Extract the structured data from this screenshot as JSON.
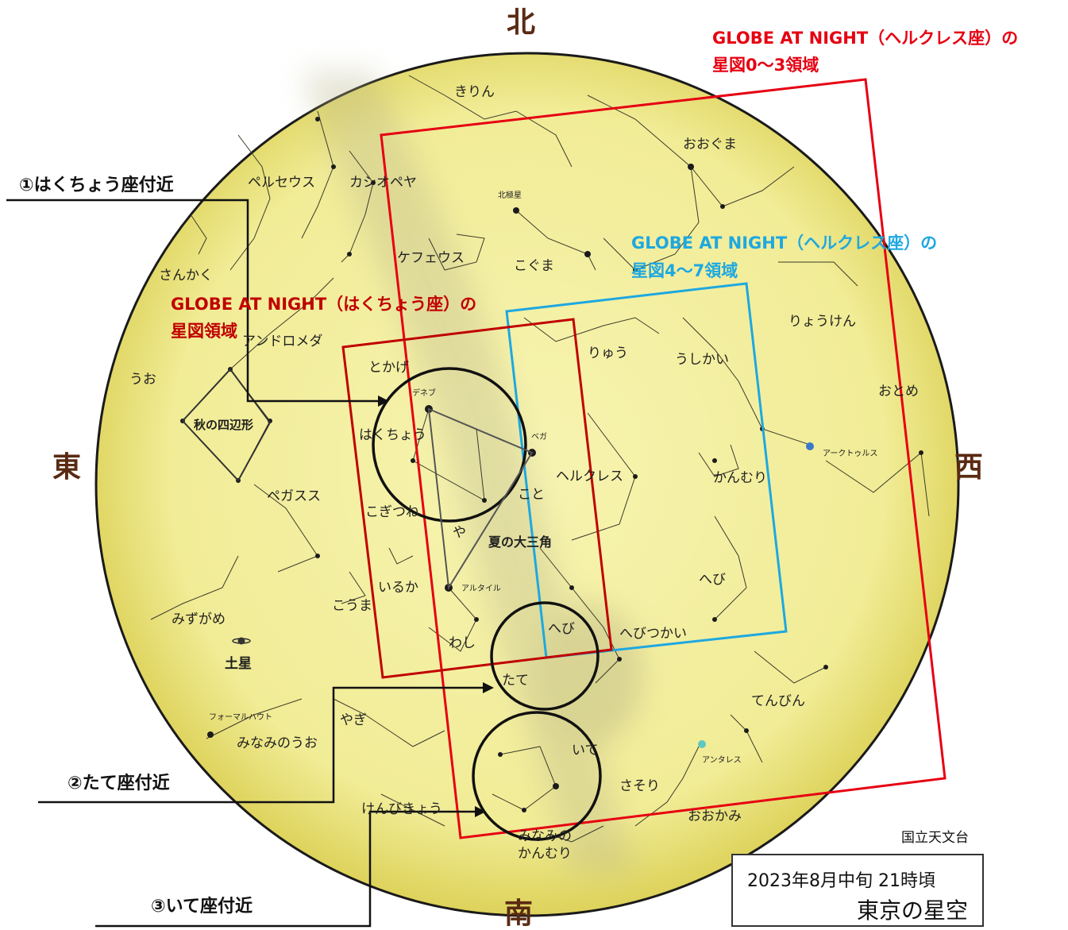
{
  "directions": {
    "north": "北",
    "south": "南",
    "east": "東",
    "west": "西"
  },
  "title_box": {
    "date": "2023年8月中旬 21時頃",
    "location": "東京の星空"
  },
  "credit": "国立天文台",
  "regions": {
    "globe_hercules_0_3": {
      "line1": "GLOBE AT NIGHT（ヘルクレス座）の",
      "line2": "星図0〜3領域",
      "color": "#e60012"
    },
    "globe_hercules_4_7": {
      "line1": "GLOBE AT NIGHT（ヘルクレス座）の",
      "line2": "星図4〜7領域",
      "color": "#1ea8e0"
    },
    "globe_cygnus": {
      "line1": "GLOBE AT NIGHT（はくちょう座）の",
      "line2": "星図領域",
      "color": "#c00000"
    }
  },
  "callouts": {
    "cygnus_area": "①はくちょう座付近",
    "scutum_area": "②たて座付近",
    "sagittarius_area": "③いて座付近"
  },
  "constellations": {
    "kirin": "きりん",
    "ooguma": "おおぐま",
    "perseus": "ペルセウス",
    "cassiopeia": "カシオペヤ",
    "cepheus": "ケフェウス",
    "koguma": "こぐま",
    "sankaku": "さんかく",
    "ryouken": "りょうけん",
    "andromeda": "アンドロメダ",
    "ryuu": "りゅう",
    "ushikai": "うしかい",
    "tokage": "とかげ",
    "uo": "うお",
    "otome": "おとめ",
    "hakuchou": "はくちょう",
    "hercules": "ヘルクレス",
    "kanmuri": "かんむり",
    "pegasus": "ペガスス",
    "kogitsune": "こぎつね",
    "koto": "こと",
    "ya": "や",
    "iruka": "いるか",
    "hebi_upper": "へび",
    "kouma": "こうま",
    "mizugame": "みずがめ",
    "washi": "わし",
    "hebi_lower": "へび",
    "hebitsukai": "へびつかい",
    "tate": "たて",
    "tenbin": "てんびん",
    "yagi": "やぎ",
    "minaminouo": "みなみのうお",
    "ite": "いて",
    "sasori": "さそり",
    "kenbikyou": "けんびきょう",
    "ookami": "おおかみ",
    "minaminokanmuri_1": "みなみの",
    "minaminokanmuri_2": "かんむり"
  },
  "asterisms": {
    "autumn_square": "秋の四辺形",
    "summer_triangle": "夏の大三角"
  },
  "stars": {
    "polaris": "北極星",
    "deneb": "デネブ",
    "vega": "ベガ",
    "altair": "アルタイル",
    "arcturus": "アークトゥルス",
    "antares": "アンタレス",
    "fomalhaut": "フォーマルハウト"
  },
  "planets": {
    "saturn": "土星"
  },
  "colors": {
    "sky": "#f4f1a0",
    "sky_edge": "#e6dd6a",
    "region_red": "#e60012",
    "region_blue": "#1ea8e0",
    "region_darkred": "#c00000",
    "arcturus": "#3a78c9",
    "antares": "#5ec8c0"
  }
}
